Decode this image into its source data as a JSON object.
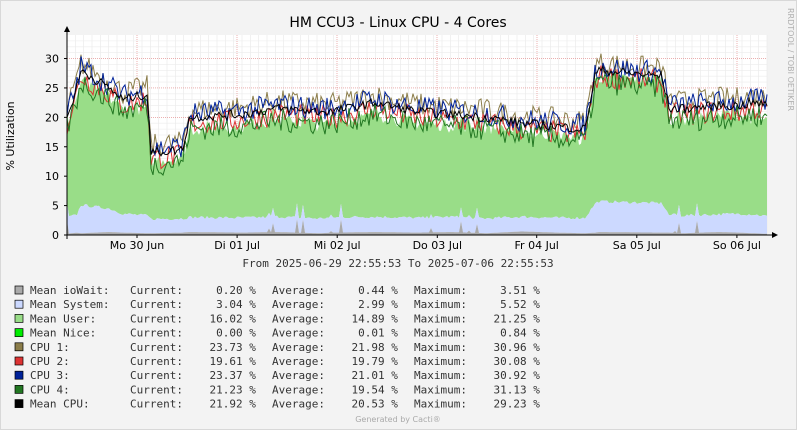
{
  "chart_data": {
    "type": "area",
    "title": "HM CCU3 - Linux CPU - 4 Cores",
    "ylabel": "% Utilization",
    "side_label": "RRDTOOL / TOBI OETIKER",
    "ylim": [
      0,
      34
    ],
    "yticks": [
      0,
      5,
      10,
      15,
      20,
      25,
      30
    ],
    "xrange": [
      "2025-06-29 22:55:53",
      "2025-07-06 22:55:53"
    ],
    "xticks": [
      {
        "label": "Mo 30 Jun",
        "t": 0.1
      },
      {
        "label": "Di 01 Jul",
        "t": 0.243
      },
      {
        "label": "Mi 02 Jul",
        "t": 0.386
      },
      {
        "label": "Do 03 Jul",
        "t": 0.529
      },
      {
        "label": "Fr 04 Jul",
        "t": 0.671
      },
      {
        "label": "Sa 05 Jul",
        "t": 0.814
      },
      {
        "label": "So 06 Jul",
        "t": 0.957
      }
    ],
    "range_text": "From 2025-06-29 22:55:53 To 2025-07-06 22:55:53",
    "time_fraction": [
      0,
      0.014,
      0.02,
      0.06,
      0.08,
      0.115,
      0.12,
      0.165,
      0.175,
      0.25,
      0.3,
      0.36,
      0.38,
      0.44,
      0.5,
      0.55,
      0.6,
      0.65,
      0.7,
      0.74,
      0.755,
      0.76,
      0.85,
      0.86,
      0.88,
      0.93,
      0.96,
      0.98,
      1.0
    ],
    "series": [
      {
        "name": "Mean ioWait",
        "color": "#aaaaaa",
        "kind": "area",
        "values": [
          0.2,
          0.4,
          0.3,
          0.5,
          0.4,
          0.3,
          0.3,
          0.4,
          0.5,
          0.4,
          0.5,
          0.3,
          0.4,
          0.5,
          0.4,
          0.5,
          0.3,
          0.6,
          0.4,
          0.3,
          0.4,
          0.5,
          0.4,
          0.4,
          0.3,
          0.5,
          0.4,
          0.3,
          0.2
        ]
      },
      {
        "name": "Mean System",
        "color": "#ccd9ff",
        "kind": "area",
        "values": [
          2.8,
          3.0,
          4.8,
          4.0,
          3.2,
          3.0,
          2.4,
          2.4,
          2.5,
          2.5,
          2.6,
          2.5,
          2.6,
          2.6,
          2.5,
          2.6,
          2.5,
          2.5,
          2.5,
          2.6,
          5.0,
          5.2,
          5.0,
          3.0,
          3.0,
          3.0,
          3.2,
          3.2,
          3.0
        ]
      },
      {
        "name": "Mean User",
        "color": "#99dd88",
        "kind": "area",
        "values": [
          15.0,
          20.0,
          21.0,
          19.0,
          18.0,
          18.0,
          10.0,
          10.5,
          15.0,
          15.5,
          16.5,
          16.0,
          16.0,
          17.5,
          16.0,
          15.5,
          15.5,
          14.5,
          14.0,
          13.5,
          21.0,
          21.0,
          21.0,
          16.0,
          16.5,
          17.0,
          17.0,
          16.5,
          16.0
        ]
      },
      {
        "name": "Mean Nice",
        "color": "#00ee00",
        "kind": "area",
        "values": [
          0.0,
          0.0,
          0.0,
          0.0,
          0.0,
          0.0,
          0.0,
          0.0,
          0.0,
          0.0,
          0.0,
          0.0,
          0.0,
          0.0,
          0.0,
          0.0,
          0.0,
          0.0,
          0.0,
          0.0,
          0.0,
          0.0,
          0.0,
          0.0,
          0.0,
          0.0,
          0.0,
          0.0,
          0.0
        ]
      },
      {
        "name": "CPU 1",
        "color": "#8b7d4a",
        "kind": "line",
        "offset": 1.2,
        "values": [
          20.0,
          25.0,
          28.0,
          25.0,
          23.0,
          24.0,
          14.0,
          14.5,
          20.0,
          20.5,
          21.5,
          21.0,
          21.0,
          22.5,
          21.0,
          20.5,
          20.0,
          19.0,
          18.5,
          18.0,
          27.5,
          28.0,
          27.0,
          21.5,
          21.5,
          22.0,
          22.0,
          22.5,
          22.0
        ]
      },
      {
        "name": "CPU 2",
        "color": "#dd3333",
        "kind": "line",
        "offset": -1.0,
        "values": [
          20.0,
          25.0,
          28.0,
          25.0,
          23.0,
          24.0,
          14.0,
          14.5,
          20.0,
          20.5,
          21.5,
          21.0,
          21.0,
          22.5,
          21.0,
          20.5,
          20.0,
          19.0,
          18.5,
          18.0,
          27.5,
          28.0,
          27.0,
          21.5,
          21.5,
          22.0,
          22.0,
          22.5,
          22.0
        ]
      },
      {
        "name": "CPU 3",
        "color": "#002299",
        "kind": "line",
        "offset": 0.6,
        "values": [
          20.0,
          25.0,
          28.0,
          25.0,
          23.0,
          24.0,
          14.0,
          14.5,
          20.0,
          20.5,
          21.5,
          21.0,
          21.0,
          22.5,
          21.0,
          20.5,
          20.0,
          19.0,
          18.5,
          18.0,
          27.5,
          28.0,
          27.0,
          21.5,
          21.5,
          22.0,
          22.0,
          22.5,
          22.0
        ]
      },
      {
        "name": "CPU 4",
        "color": "#227722",
        "kind": "line",
        "offset": -2.0,
        "values": [
          20.0,
          25.0,
          28.0,
          25.0,
          23.0,
          24.0,
          14.0,
          14.5,
          20.0,
          20.5,
          21.5,
          21.0,
          21.0,
          22.5,
          21.0,
          20.5,
          20.0,
          19.0,
          18.5,
          18.0,
          27.5,
          28.0,
          27.0,
          21.5,
          21.5,
          22.0,
          22.0,
          22.5,
          22.0
        ]
      },
      {
        "name": "Mean CPU",
        "color": "#000000",
        "kind": "line",
        "offset": 0.0,
        "values": [
          20.0,
          25.0,
          28.0,
          25.0,
          23.0,
          24.0,
          14.0,
          14.5,
          20.0,
          20.5,
          21.5,
          21.0,
          21.0,
          22.5,
          21.0,
          20.5,
          20.0,
          19.0,
          18.5,
          18.0,
          27.5,
          28.0,
          27.0,
          21.5,
          21.5,
          22.0,
          22.0,
          22.5,
          22.0
        ]
      }
    ]
  },
  "legend": {
    "current_label": "Current:",
    "average_label": "Average:",
    "maximum_label": "Maximum:",
    "unit": "%",
    "rows": [
      {
        "name": "Mean ioWait",
        "color": "#aaaaaa",
        "current": "0.20",
        "average": "0.44",
        "maximum": "3.51"
      },
      {
        "name": "Mean System",
        "color": "#ccd9ff",
        "current": "3.04",
        "average": "2.99",
        "maximum": "5.52"
      },
      {
        "name": "Mean User",
        "color": "#99dd88",
        "current": "16.02",
        "average": "14.89",
        "maximum": "21.25"
      },
      {
        "name": "Mean Nice",
        "color": "#00ee00",
        "current": "0.00",
        "average": "0.01",
        "maximum": "0.84"
      },
      {
        "name": "CPU 1",
        "color": "#8b7d4a",
        "current": "23.73",
        "average": "21.98",
        "maximum": "30.96"
      },
      {
        "name": "CPU 2",
        "color": "#dd3333",
        "current": "19.61",
        "average": "19.79",
        "maximum": "30.08"
      },
      {
        "name": "CPU 3",
        "color": "#002299",
        "current": "23.37",
        "average": "21.01",
        "maximum": "30.92"
      },
      {
        "name": "CPU 4",
        "color": "#227722",
        "current": "21.23",
        "average": "19.54",
        "maximum": "31.13"
      },
      {
        "name": "Mean CPU",
        "color": "#000000",
        "current": "21.92",
        "average": "20.53",
        "maximum": "29.23"
      }
    ]
  },
  "footer": "Generated by Cacti®"
}
